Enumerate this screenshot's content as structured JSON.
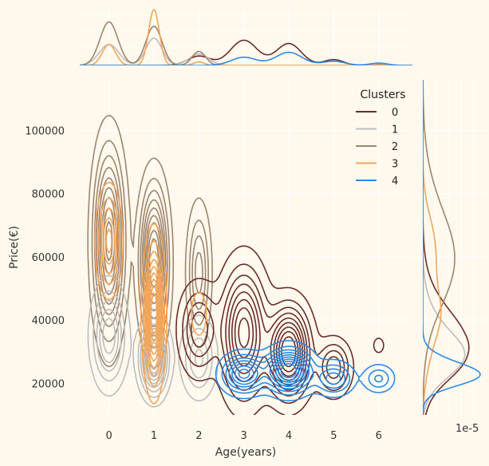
{
  "chart_data": {
    "type": "jointplot-kde",
    "xlabel": "Age(years)",
    "ylabel": "Price(€)",
    "xlim": [
      -0.65,
      6.75
    ],
    "ylim": [
      10000,
      116000
    ],
    "xticks": [
      0,
      1,
      2,
      3,
      4,
      5,
      6
    ],
    "yticks": [
      20000,
      40000,
      60000,
      80000,
      100000
    ],
    "grid": true,
    "marginal_y_offset_label": "1e-5",
    "legend": {
      "title": "Clusters",
      "placement": "top-right"
    },
    "series": [
      {
        "name": "0",
        "color": "#6B2D2A",
        "blobs": [
          {
            "x": 2.0,
            "y": 37000,
            "sx": 0.25,
            "sy": 8000,
            "w": 0.25
          },
          {
            "x": 3.0,
            "y": 36000,
            "sx": 0.3,
            "sy": 12000,
            "w": 0.45
          },
          {
            "x": 4.0,
            "y": 30000,
            "sx": 0.28,
            "sy": 8500,
            "w": 0.55
          },
          {
            "x": 5.0,
            "y": 25000,
            "sx": 0.22,
            "sy": 5000,
            "w": 0.25
          },
          {
            "x": 6.0,
            "y": 32000,
            "sx": 0.12,
            "sy": 2500,
            "w": 0.05
          }
        ]
      },
      {
        "name": "1",
        "color": "#BDBDBD",
        "blobs": [
          {
            "x": 0.0,
            "y": 35000,
            "sx": 0.22,
            "sy": 9000,
            "w": 0.5
          },
          {
            "x": 1.0,
            "y": 28000,
            "sx": 0.18,
            "sy": 6500,
            "w": 0.9
          },
          {
            "x": 2.0,
            "y": 28000,
            "sx": 0.22,
            "sy": 7000,
            "w": 0.35
          }
        ]
      },
      {
        "name": "2",
        "color": "#9C8570",
        "blobs": [
          {
            "x": 0.0,
            "y": 65000,
            "sx": 0.2,
            "sy": 17000,
            "w": 0.55
          },
          {
            "x": 1.0,
            "y": 58000,
            "sx": 0.18,
            "sy": 14000,
            "w": 0.6
          },
          {
            "x": 2.0,
            "y": 55000,
            "sx": 0.15,
            "sy": 12000,
            "w": 0.25
          }
        ]
      },
      {
        "name": "3",
        "color": "#F2A65A",
        "blobs": [
          {
            "x": 0.0,
            "y": 65000,
            "sx": 0.15,
            "sy": 9000,
            "w": 0.5
          },
          {
            "x": 1.0,
            "y": 42000,
            "sx": 0.12,
            "sy": 12000,
            "w": 1.0
          },
          {
            "x": 2.0,
            "y": 42000,
            "sx": 0.12,
            "sy": 5000,
            "w": 0.15
          }
        ]
      },
      {
        "name": "4",
        "color": "#2A8BE8",
        "blobs": [
          {
            "x": 3.0,
            "y": 23000,
            "sx": 0.28,
            "sy": 3500,
            "w": 0.5
          },
          {
            "x": 4.0,
            "y": 24000,
            "sx": 0.3,
            "sy": 4000,
            "w": 0.7
          },
          {
            "x": 5.0,
            "y": 21500,
            "sx": 0.25,
            "sy": 3000,
            "w": 0.3
          },
          {
            "x": 6.0,
            "y": 21500,
            "sx": 0.2,
            "sy": 2500,
            "w": 0.2
          }
        ]
      }
    ]
  }
}
